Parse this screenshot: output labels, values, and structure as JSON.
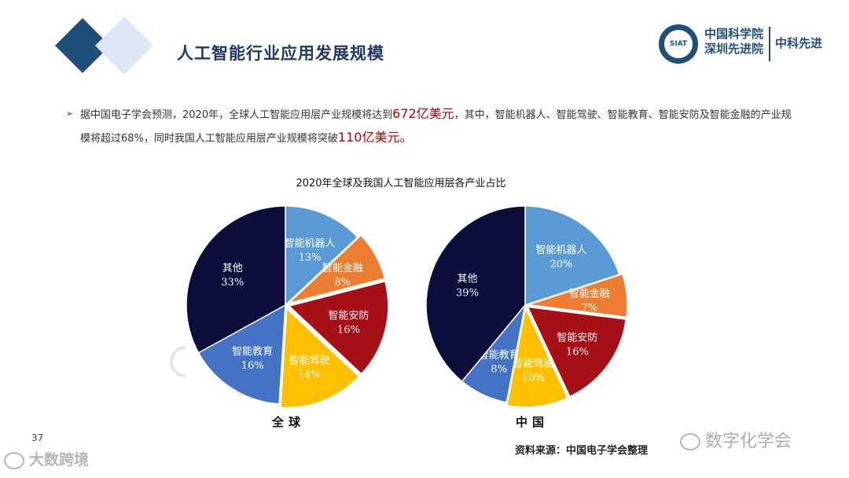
{
  "header": {
    "title": "人工智能行业应用发展规模"
  },
  "logo": {
    "seal_text": "SIAT",
    "org_line1": "中国科学院",
    "org_line2": "深圳先进院",
    "short_name": "中科先进"
  },
  "bullet": {
    "part1": "据中国电子学会预测，2020年，全球人工智能应用层产业规模将达到",
    "highlight1": "672亿美元",
    "part2": "，其中，智能机器人、智能驾驶、智能教育、智能安防及智能金融的产业规模将超过68%，同时我国人工智能应用层产业规模将突破",
    "highlight2": "110亿美元。"
  },
  "colors": {
    "智能机器人": "#5b9bd5",
    "智能金融": "#ed7d31",
    "智能安防": "#a50f15",
    "智能驾驶": "#ffc000",
    "智能教育": "#4472c4",
    "其他": "#0b0e3a",
    "highlight": "#c00000",
    "title": "#1f3864"
  },
  "chart_data": {
    "type": "pie",
    "title": "2020年全球及我国人工智能应用层各产业占比",
    "pies": [
      {
        "name": "全球",
        "slices": [
          {
            "label": "智能机器人",
            "value": 13,
            "pct": "13%"
          },
          {
            "label": "智能金融",
            "value": 8,
            "pct": "8%"
          },
          {
            "label": "智能安防",
            "value": 16,
            "pct": "16%"
          },
          {
            "label": "智能驾驶",
            "value": 14,
            "pct": "14%"
          },
          {
            "label": "智能教育",
            "value": 16,
            "pct": "16%"
          },
          {
            "label": "其他",
            "value": 33,
            "pct": "33%"
          }
        ]
      },
      {
        "name": "中国",
        "slices": [
          {
            "label": "智能机器人",
            "value": 20,
            "pct": "20%"
          },
          {
            "label": "智能金融",
            "value": 7,
            "pct": "7%"
          },
          {
            "label": "智能安防",
            "value": 16,
            "pct": "16%"
          },
          {
            "label": "智能驾驶",
            "value": 10,
            "pct": "10%"
          },
          {
            "label": "智能教育",
            "value": 8,
            "pct": "8%"
          },
          {
            "label": "其他",
            "value": 39,
            "pct": "39%"
          }
        ]
      }
    ]
  },
  "labels": {
    "global": "全球",
    "china": "中国"
  },
  "footer": {
    "source": "资料来源：中国电子学会整理",
    "page_number": "37"
  },
  "watermarks": {
    "left": "大数跨境",
    "right": "数字化学会"
  }
}
